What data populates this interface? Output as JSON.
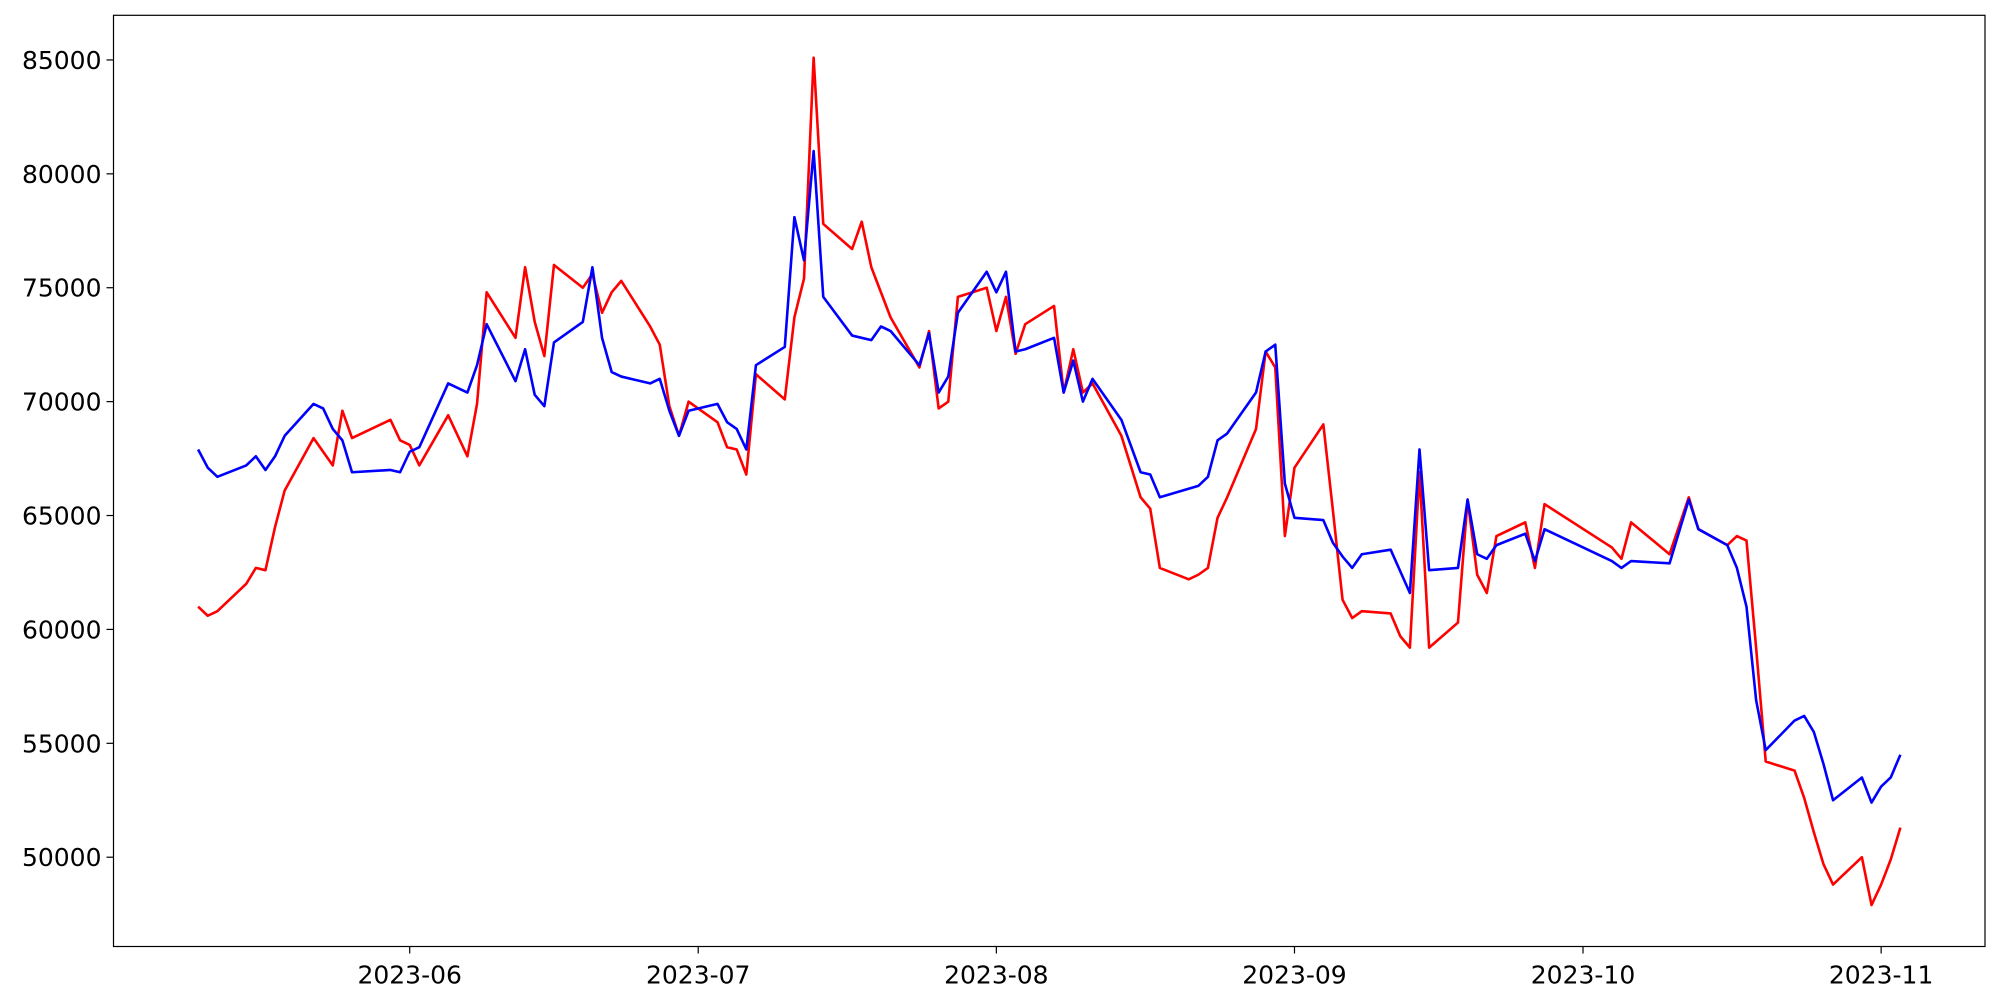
{
  "chart_data": {
    "type": "line",
    "xlim": [
      121.2,
      315.8
    ],
    "ylim": [
      46080,
      86960
    ],
    "xticks": [
      {
        "value": 152,
        "label": "2023-06"
      },
      {
        "value": 182,
        "label": "2023-07"
      },
      {
        "value": 213,
        "label": "2023-08"
      },
      {
        "value": 244,
        "label": "2023-09"
      },
      {
        "value": 274,
        "label": "2023-10"
      },
      {
        "value": 305,
        "label": "2023-11"
      }
    ],
    "yticks": [
      50000,
      55000,
      60000,
      65000,
      70000,
      75000,
      80000,
      85000
    ],
    "grid": false,
    "series": [
      {
        "color": "#ff0000",
        "x": [
          130,
          131,
          132,
          135,
          136,
          137,
          138,
          139,
          142,
          143,
          144,
          145,
          146,
          150,
          151,
          152,
          153,
          156,
          158,
          159,
          160,
          163,
          164,
          165,
          166,
          167,
          170,
          171,
          172,
          173,
          174,
          177,
          178,
          179,
          180,
          181,
          184,
          185,
          186,
          187,
          188,
          191,
          192,
          193,
          194,
          195,
          198,
          199,
          200,
          202,
          205,
          206,
          207,
          208,
          209,
          212,
          213,
          214,
          215,
          216,
          219,
          220,
          221,
          222,
          223,
          226,
          228,
          229,
          230,
          233,
          234,
          235,
          236,
          237,
          240,
          241,
          242,
          243,
          244,
          247,
          248,
          249,
          250,
          251,
          254,
          255,
          256,
          257,
          258,
          261,
          262,
          263,
          264,
          265,
          268,
          269,
          270,
          277,
          278,
          279,
          283,
          285,
          286,
          289,
          290,
          291,
          292,
          293,
          296,
          297,
          298,
          299,
          300,
          303,
          304,
          305,
          306,
          307
        ],
        "values": [
          61000,
          60600,
          60800,
          62000,
          62700,
          62600,
          64500,
          66100,
          68400,
          67800,
          67200,
          69600,
          68400,
          69200,
          68300,
          68100,
          67200,
          69400,
          67600,
          69900,
          74800,
          72800,
          75900,
          73500,
          72000,
          76000,
          75000,
          75600,
          73900,
          74800,
          75300,
          73300,
          72500,
          69800,
          68500,
          70000,
          69100,
          68000,
          67900,
          66800,
          71200,
          70100,
          73700,
          75400,
          85100,
          77800,
          76700,
          77900,
          75900,
          73700,
          71500,
          73100,
          69700,
          70000,
          74600,
          75000,
          73100,
          74600,
          72100,
          73400,
          74200,
          70400,
          72300,
          70400,
          70800,
          68500,
          65800,
          65300,
          62700,
          62200,
          62400,
          62700,
          64900,
          65800,
          68800,
          72200,
          71500,
          64100,
          67100,
          69000,
          65200,
          61300,
          60500,
          60800,
          60700,
          59700,
          59200,
          66900,
          59200,
          60300,
          65700,
          62400,
          61600,
          64100,
          64700,
          62700,
          65500,
          63600,
          63100,
          64700,
          63300,
          65800,
          64400,
          63700,
          64100,
          63900,
          59200,
          54200,
          53800,
          52600,
          51100,
          49700,
          48800,
          50000,
          47900,
          48800,
          49900,
          51300
        ]
      },
      {
        "color": "#0000ff",
        "x": [
          130,
          131,
          132,
          135,
          136,
          137,
          138,
          139,
          142,
          143,
          144,
          145,
          146,
          150,
          151,
          152,
          153,
          156,
          158,
          159,
          160,
          163,
          164,
          165,
          166,
          167,
          170,
          171,
          172,
          173,
          174,
          177,
          178,
          179,
          180,
          181,
          184,
          185,
          186,
          187,
          188,
          191,
          192,
          193,
          194,
          195,
          198,
          200,
          201,
          202,
          205,
          206,
          207,
          208,
          209,
          212,
          213,
          214,
          215,
          216,
          219,
          220,
          221,
          222,
          223,
          226,
          228,
          229,
          230,
          234,
          235,
          236,
          237,
          240,
          241,
          242,
          243,
          244,
          247,
          248,
          249,
          250,
          251,
          254,
          256,
          257,
          258,
          261,
          262,
          263,
          264,
          265,
          268,
          269,
          270,
          277,
          278,
          279,
          283,
          285,
          286,
          289,
          290,
          291,
          292,
          293,
          296,
          297,
          298,
          299,
          300,
          303,
          304,
          305,
          306,
          307
        ],
        "values": [
          67900,
          67100,
          66700,
          67200,
          67600,
          67000,
          67600,
          68500,
          69900,
          69700,
          68800,
          68300,
          66900,
          67000,
          66900,
          67800,
          68000,
          70800,
          70400,
          71600,
          73400,
          70900,
          72300,
          70300,
          69800,
          72600,
          73500,
          75900,
          72800,
          71300,
          71100,
          70800,
          71000,
          69600,
          68500,
          69600,
          69900,
          69100,
          68800,
          67900,
          71600,
          72400,
          78100,
          76200,
          81000,
          74600,
          72900,
          72700,
          73300,
          73100,
          71600,
          73000,
          70400,
          71100,
          73900,
          75700,
          74800,
          75700,
          72200,
          72300,
          72800,
          70400,
          71800,
          70000,
          71000,
          69200,
          66900,
          66800,
          65800,
          66300,
          66700,
          68300,
          68600,
          70400,
          72200,
          72500,
          66400,
          64900,
          64800,
          63800,
          63200,
          62700,
          63300,
          63500,
          61600,
          67900,
          62600,
          62700,
          65700,
          63300,
          63100,
          63700,
          64200,
          63000,
          64400,
          63000,
          62700,
          63000,
          62900,
          65700,
          64400,
          63700,
          62700,
          61000,
          56900,
          54700,
          56000,
          56200,
          55500,
          54100,
          52500,
          53500,
          52400,
          53100,
          53500,
          54500
        ]
      }
    ]
  }
}
